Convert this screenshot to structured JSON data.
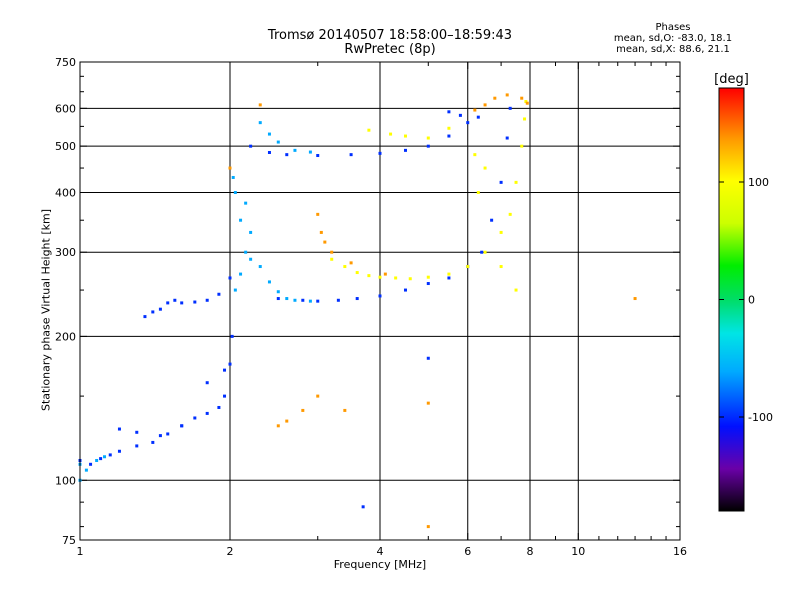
{
  "chart_data": {
    "type": "scatter",
    "title": "Tromsø 20140507 18:58:00–18:59:43",
    "subtitle": "RwPretec (8p)",
    "legend_title": "Phases",
    "legend_lines": [
      "mean, sd,O: -83.0, 18.1",
      "mean, sd,X: 88.6, 21.1"
    ],
    "xlabel": "Frequency [MHz]",
    "ylabel": "Stationary phase Virtual Height [km]",
    "x_scale": "log",
    "y_scale": "log",
    "xlim": [
      1,
      16
    ],
    "ylim": [
      75,
      750
    ],
    "x_ticks": [
      1,
      2,
      4,
      6,
      8,
      10,
      16
    ],
    "y_ticks": [
      75,
      100,
      200,
      300,
      400,
      500,
      600,
      750
    ],
    "x_minor_ticks": [
      3,
      5,
      7,
      9,
      11,
      12,
      13,
      14,
      15
    ],
    "y_minor_ticks": [
      80,
      90,
      150,
      250,
      350,
      450,
      550,
      650,
      700
    ],
    "grid": true,
    "colorbar": {
      "label": "[deg]",
      "range": [
        -180,
        180
      ],
      "ticks": [
        100,
        0,
        -100
      ],
      "colors": [
        "#000000",
        "#6a00a8",
        "#0010ff",
        "#00aaff",
        "#00e5e5",
        "#00dd66",
        "#00ee00",
        "#ccff00",
        "#ffff00",
        "#ff9900",
        "#ff0000"
      ]
    },
    "series": [
      {
        "phase": -100,
        "points": [
          [
            1.0,
            110
          ],
          [
            1.05,
            108
          ],
          [
            1.1,
            111
          ],
          [
            1.15,
            113
          ],
          [
            1.2,
            115
          ],
          [
            1.3,
            118
          ],
          [
            1.4,
            120
          ],
          [
            1.5,
            125
          ],
          [
            1.6,
            130
          ],
          [
            1.7,
            135
          ],
          [
            1.8,
            138
          ],
          [
            1.9,
            142
          ],
          [
            1.95,
            150
          ],
          [
            2.0,
            175
          ],
          [
            2.02,
            200
          ],
          [
            1.2,
            128
          ],
          [
            1.3,
            126
          ],
          [
            1.45,
            124
          ],
          [
            1.6,
            130
          ],
          [
            1.8,
            160
          ],
          [
            1.95,
            170
          ],
          [
            1.35,
            220
          ],
          [
            1.4,
            225
          ],
          [
            1.45,
            228
          ],
          [
            1.5,
            235
          ],
          [
            1.55,
            238
          ],
          [
            1.6,
            235
          ],
          [
            1.7,
            236
          ],
          [
            1.8,
            238
          ],
          [
            1.9,
            245
          ],
          [
            2.0,
            265
          ],
          [
            2.2,
            500
          ],
          [
            2.4,
            485
          ],
          [
            2.6,
            480
          ],
          [
            3.0,
            478
          ],
          [
            3.5,
            480
          ],
          [
            4.0,
            483
          ],
          [
            4.5,
            490
          ],
          [
            5.0,
            500
          ],
          [
            5.5,
            525
          ],
          [
            6.0,
            560
          ],
          [
            6.3,
            575
          ],
          [
            2.5,
            240
          ],
          [
            2.8,
            238
          ],
          [
            3.0,
            237
          ],
          [
            3.3,
            238
          ],
          [
            3.6,
            240
          ],
          [
            4.0,
            243
          ],
          [
            4.5,
            250
          ],
          [
            5.0,
            258
          ],
          [
            5.5,
            265
          ],
          [
            6.0,
            280
          ],
          [
            6.4,
            300
          ],
          [
            6.7,
            350
          ],
          [
            7.0,
            420
          ],
          [
            7.2,
            520
          ],
          [
            7.3,
            600
          ],
          [
            5.5,
            590
          ],
          [
            5.8,
            580
          ],
          [
            3.7,
            88
          ],
          [
            5.0,
            180
          ]
        ]
      },
      {
        "phase": -60,
        "points": [
          [
            1.0,
            100
          ],
          [
            1.03,
            105
          ],
          [
            1.08,
            110
          ],
          [
            1.12,
            112
          ],
          [
            1.0,
            108
          ],
          [
            2.05,
            250
          ],
          [
            2.1,
            270
          ],
          [
            2.15,
            300
          ],
          [
            2.2,
            330
          ],
          [
            2.3,
            280
          ],
          [
            2.4,
            260
          ],
          [
            2.5,
            248
          ],
          [
            2.6,
            240
          ],
          [
            2.7,
            238
          ],
          [
            2.9,
            237
          ],
          [
            2.1,
            350
          ],
          [
            2.05,
            400
          ],
          [
            2.03,
            430
          ],
          [
            2.15,
            380
          ],
          [
            2.2,
            290
          ],
          [
            2.3,
            560
          ],
          [
            2.4,
            530
          ],
          [
            2.5,
            510
          ],
          [
            2.7,
            490
          ],
          [
            2.9,
            486
          ]
        ]
      },
      {
        "phase": 100,
        "points": [
          [
            3.2,
            290
          ],
          [
            3.4,
            280
          ],
          [
            3.6,
            272
          ],
          [
            3.8,
            268
          ],
          [
            4.0,
            266
          ],
          [
            4.3,
            265
          ],
          [
            4.6,
            264
          ],
          [
            5.0,
            266
          ],
          [
            5.5,
            270
          ],
          [
            6.0,
            280
          ],
          [
            6.5,
            300
          ],
          [
            7.0,
            330
          ],
          [
            7.3,
            360
          ],
          [
            7.5,
            420
          ],
          [
            7.7,
            500
          ],
          [
            7.8,
            570
          ],
          [
            7.85,
            620
          ],
          [
            3.8,
            540
          ],
          [
            4.2,
            530
          ],
          [
            4.5,
            525
          ],
          [
            5.0,
            520
          ],
          [
            5.5,
            545
          ],
          [
            6.3,
            400
          ],
          [
            6.2,
            480
          ],
          [
            6.5,
            450
          ],
          [
            7.0,
            280
          ],
          [
            7.5,
            250
          ]
        ]
      },
      {
        "phase": 140,
        "points": [
          [
            3.0,
            360
          ],
          [
            3.05,
            330
          ],
          [
            3.1,
            315
          ],
          [
            3.2,
            300
          ],
          [
            3.5,
            285
          ],
          [
            4.1,
            270
          ],
          [
            6.5,
            610
          ],
          [
            6.8,
            630
          ],
          [
            7.2,
            640
          ],
          [
            7.7,
            630
          ],
          [
            7.9,
            615
          ],
          [
            6.2,
            595
          ],
          [
            3.0,
            150
          ],
          [
            2.8,
            140
          ],
          [
            2.6,
            133
          ],
          [
            2.5,
            130
          ],
          [
            5.0,
            80
          ],
          [
            5.0,
            145
          ],
          [
            13.0,
            240
          ],
          [
            2.0,
            450
          ],
          [
            2.3,
            610
          ],
          [
            3.4,
            140
          ]
        ]
      }
    ]
  }
}
